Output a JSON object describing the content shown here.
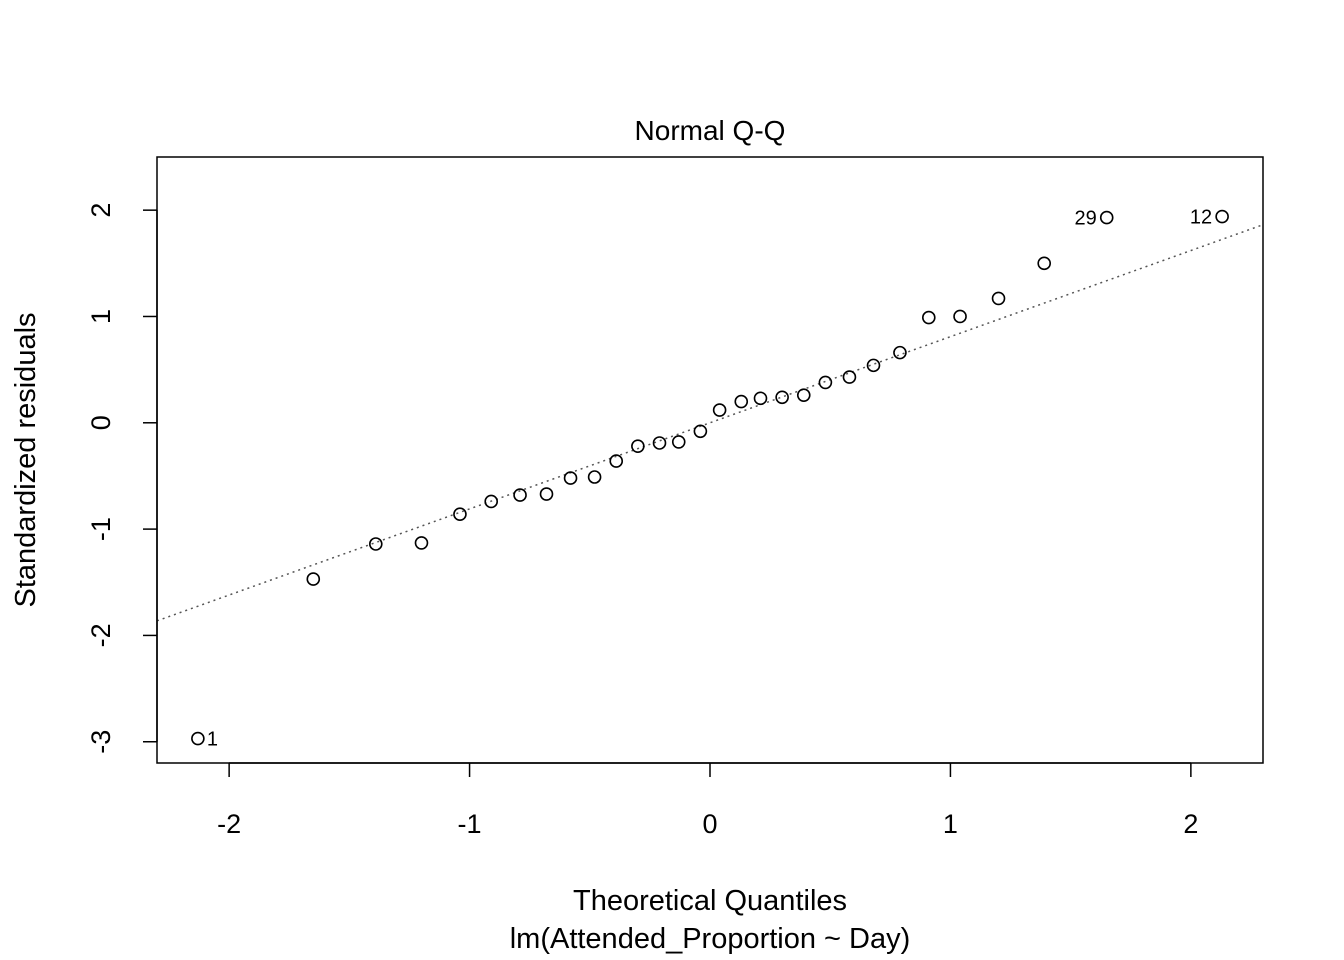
{
  "chart_data": {
    "type": "scatter",
    "title": "Normal Q-Q",
    "xlabel": "Theoretical Quantiles",
    "subtitle": "lm(Attended_Proportion ~ Day)",
    "ylabel": "Standardized residuals",
    "xlim": [
      -2.3,
      2.3
    ],
    "ylim": [
      -3.2,
      2.5
    ],
    "xticks": [
      -2,
      -1,
      0,
      1,
      2
    ],
    "yticks": [
      -3,
      -2,
      -1,
      0,
      1,
      2
    ],
    "grid": false,
    "points": [
      {
        "x": -2.13,
        "y": -2.97,
        "label": "1"
      },
      {
        "x": -1.65,
        "y": -1.47
      },
      {
        "x": -1.39,
        "y": -1.14
      },
      {
        "x": -1.2,
        "y": -1.13
      },
      {
        "x": -1.04,
        "y": -0.86
      },
      {
        "x": -0.91,
        "y": -0.74
      },
      {
        "x": -0.79,
        "y": -0.68
      },
      {
        "x": -0.68,
        "y": -0.67
      },
      {
        "x": -0.58,
        "y": -0.52
      },
      {
        "x": -0.48,
        "y": -0.51
      },
      {
        "x": -0.39,
        "y": -0.36
      },
      {
        "x": -0.3,
        "y": -0.22
      },
      {
        "x": -0.21,
        "y": -0.19
      },
      {
        "x": -0.13,
        "y": -0.18
      },
      {
        "x": -0.04,
        "y": -0.08
      },
      {
        "x": 0.04,
        "y": 0.12
      },
      {
        "x": 0.13,
        "y": 0.2
      },
      {
        "x": 0.21,
        "y": 0.23
      },
      {
        "x": 0.3,
        "y": 0.24
      },
      {
        "x": 0.39,
        "y": 0.26
      },
      {
        "x": 0.48,
        "y": 0.38
      },
      {
        "x": 0.58,
        "y": 0.43
      },
      {
        "x": 0.68,
        "y": 0.54
      },
      {
        "x": 0.79,
        "y": 0.66
      },
      {
        "x": 0.91,
        "y": 0.99
      },
      {
        "x": 1.04,
        "y": 1.0
      },
      {
        "x": 1.2,
        "y": 1.17
      },
      {
        "x": 1.39,
        "y": 1.5
      },
      {
        "x": 1.65,
        "y": 1.93,
        "label": "29"
      },
      {
        "x": 2.13,
        "y": 1.94,
        "label": "12"
      }
    ],
    "reference_line": {
      "intercept": 0.0,
      "slope": 0.81,
      "style": "dotted"
    }
  }
}
